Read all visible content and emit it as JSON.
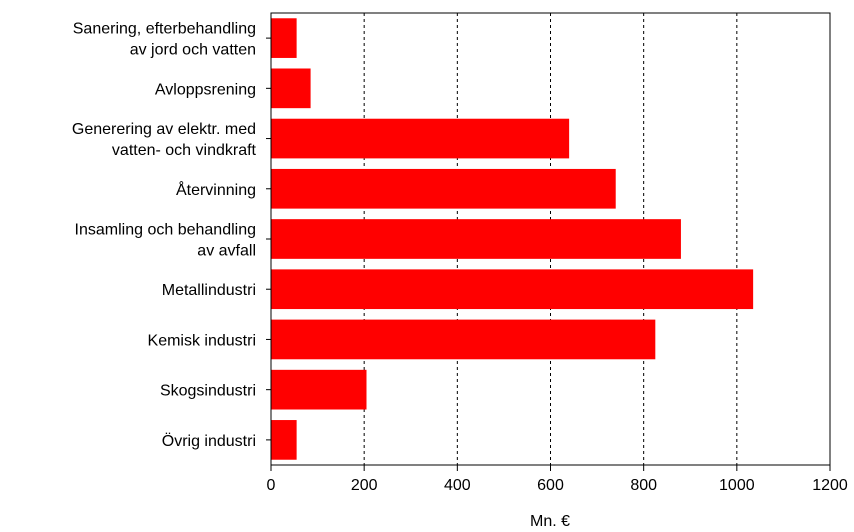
{
  "chart_data": {
    "type": "bar",
    "orientation": "horizontal",
    "categories": [
      [
        "Sanering, efterbehandling",
        "av jord och vatten"
      ],
      [
        "Avloppsrening"
      ],
      [
        "Generering av elektr. med",
        "vatten- och vindkraft"
      ],
      [
        "Återvinning"
      ],
      [
        "Insamling och behandling",
        "av avfall"
      ],
      [
        "Metallindustri"
      ],
      [
        "Kemisk industri"
      ],
      [
        "Skogsindustri"
      ],
      [
        "Övrig industri"
      ]
    ],
    "values": [
      55,
      85,
      640,
      740,
      880,
      1035,
      825,
      205,
      55
    ],
    "xlabel": "Mn. €",
    "xlim": [
      0,
      1200
    ],
    "xticks": [
      0,
      200,
      400,
      600,
      800,
      1000,
      1200
    ],
    "grid": "vertical dashed",
    "bar_color": "#ff0000"
  }
}
